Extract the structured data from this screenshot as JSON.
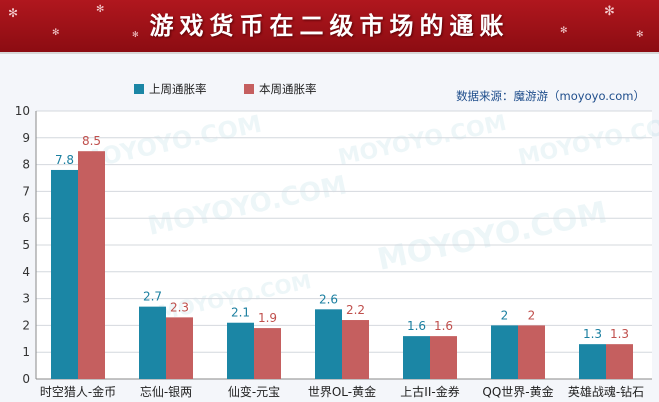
{
  "banner": {
    "title": "游戏货币在二级市场的通账"
  },
  "source": "数据来源：魔游游（moyoyo.com）",
  "colors": {
    "banner": "#a3121a",
    "series_last": "#1b86a5",
    "series_this": "#c55f5f",
    "background": "#f4f6fa"
  },
  "chart_data": {
    "type": "bar",
    "categories": [
      "时空猎人-金币",
      "忘仙-银两",
      "仙变-元宝",
      "世界OL-黄金",
      "上古II-金券",
      "QQ世界-黄金",
      "英雄战魂-钻石"
    ],
    "series": [
      {
        "name": "上周通胀率",
        "values": [
          7.8,
          2.7,
          2.1,
          2.6,
          1.6,
          2,
          1.3
        ],
        "labels": [
          "7.8",
          "2.7",
          "2.1",
          "2.6",
          "1.6",
          "2",
          "1.3"
        ]
      },
      {
        "name": "本周通胀率",
        "values": [
          8.5,
          2.3,
          1.9,
          2.2,
          1.6,
          2,
          1.3
        ],
        "labels": [
          "8.5",
          "2.3",
          "1.9",
          "2.2",
          "1.6",
          "2",
          "1.3"
        ]
      }
    ],
    "ylim": [
      0,
      10
    ],
    "yticks": [
      "0",
      "1",
      "2",
      "3",
      "4",
      "5",
      "6",
      "7",
      "8",
      "9",
      "10"
    ],
    "grid": true,
    "legend_position": "top-left",
    "watermark": "MOYOYO.COM"
  }
}
